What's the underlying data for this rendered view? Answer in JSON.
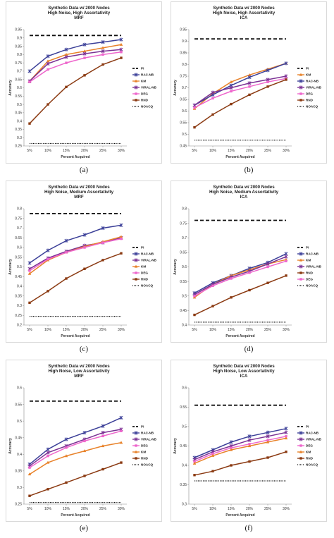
{
  "chart_data": [
    {
      "caption": "(a)",
      "type": "line",
      "title": [
        "Synthetic Data w/ 2000 Nodes",
        "High Noise, High Assortativity",
        "MRF"
      ],
      "xlabel": "Percent Acquired",
      "ylabel": "Accuracy",
      "categories": [
        "5%",
        "10%",
        "15%",
        "20%",
        "25%",
        "30%"
      ],
      "ylim": [
        0.25,
        0.95
      ],
      "ytick_step": 0.05,
      "ytick_labels": [
        "0.25",
        "0.3",
        "0.35",
        "0.4",
        "0.45",
        "0.5",
        "0.55",
        "0.6",
        "0.65",
        "0.7",
        "0.75",
        "0.8",
        "0.85",
        "0.9",
        "0.95"
      ],
      "grid": false,
      "legend_position": "right",
      "series": [
        {
          "name": "PI",
          "style": "dash",
          "color": "#111111",
          "values": [
            0.915,
            0.915,
            0.915,
            0.915,
            0.915,
            0.915
          ]
        },
        {
          "name": "RAC-NB",
          "style": "x",
          "color": "#3b3f98",
          "values": [
            0.7,
            0.79,
            0.83,
            0.86,
            0.875,
            0.89
          ]
        },
        {
          "name": "KM",
          "style": "tri",
          "color": "#e8822a",
          "values": [
            0.64,
            0.76,
            0.8,
            0.82,
            0.84,
            0.86
          ]
        },
        {
          "name": "VIRAL-NB",
          "style": "x",
          "color": "#7b3294",
          "values": [
            0.64,
            0.745,
            0.785,
            0.805,
            0.82,
            0.83
          ]
        },
        {
          "name": "DEG",
          "style": "sq",
          "color": "#ee66cc",
          "values": [
            0.635,
            0.71,
            0.75,
            0.78,
            0.8,
            0.815
          ]
        },
        {
          "name": "RND",
          "style": "sq",
          "color": "#8b3a12",
          "values": [
            0.385,
            0.5,
            0.605,
            0.675,
            0.74,
            0.78
          ]
        },
        {
          "name": "NOACQ",
          "style": "dot",
          "color": "#111111",
          "values": [
            0.265,
            0.265,
            0.265,
            0.265,
            0.265,
            0.265
          ]
        }
      ]
    },
    {
      "caption": "(b)",
      "type": "line",
      "title": [
        "Synthetic Data w/ 2000 Nodes",
        "High Noise, High Assortativity",
        "ICA"
      ],
      "xlabel": "Percent Acquired",
      "ylabel": "Accuracy",
      "categories": [
        "5%",
        "10%",
        "15%",
        "20%",
        "25%",
        "30%"
      ],
      "ylim": [
        0.45,
        0.95
      ],
      "ytick_step": 0.05,
      "ytick_labels": [
        "0.45",
        "0.5",
        "0.55",
        "0.6",
        "0.65",
        "0.7",
        "0.75",
        "0.8",
        "0.85",
        "0.9",
        "0.95"
      ],
      "grid": false,
      "legend_position": "right",
      "series": [
        {
          "name": "PI",
          "style": "dash",
          "color": "#111111",
          "values": [
            0.91,
            0.91,
            0.91,
            0.91,
            0.91,
            0.91
          ]
        },
        {
          "name": "KM",
          "style": "tri",
          "color": "#e8822a",
          "values": [
            0.61,
            0.675,
            0.725,
            0.755,
            0.78,
            0.805
          ]
        },
        {
          "name": "RAC-NB",
          "style": "x",
          "color": "#3b3f98",
          "values": [
            0.625,
            0.67,
            0.71,
            0.745,
            0.775,
            0.805
          ]
        },
        {
          "name": "VIRAL-NB",
          "style": "x",
          "color": "#7b3294",
          "values": [
            0.625,
            0.68,
            0.7,
            0.72,
            0.735,
            0.75
          ]
        },
        {
          "name": "DEG",
          "style": "sq",
          "color": "#ee66cc",
          "values": [
            0.615,
            0.655,
            0.685,
            0.705,
            0.725,
            0.74
          ]
        },
        {
          "name": "RND",
          "style": "sq",
          "color": "#8b3a12",
          "values": [
            0.53,
            0.585,
            0.63,
            0.67,
            0.705,
            0.735
          ]
        },
        {
          "name": "NOACQ",
          "style": "dot",
          "color": "#111111",
          "values": [
            0.475,
            0.475,
            0.475,
            0.475,
            0.475,
            0.475
          ]
        }
      ]
    },
    {
      "caption": "(c)",
      "type": "line",
      "title": [
        "Synthetic Data w/ 2000 Nodes",
        "High Noise, Medium Assortativity",
        "MRF"
      ],
      "xlabel": "Percent Acquired",
      "ylabel": "Accuracy",
      "categories": [
        "5%",
        "10%",
        "15%",
        "20%",
        "25%",
        "30%"
      ],
      "ylim": [
        0.2,
        0.8
      ],
      "ytick_step": 0.05,
      "ytick_labels": [
        "0.2",
        "0.25",
        "0.3",
        "0.35",
        "0.4",
        "0.45",
        "0.5",
        "0.55",
        "0.6",
        "0.65",
        "0.7",
        "0.75",
        "0.8"
      ],
      "grid": false,
      "legend_position": "right",
      "series": [
        {
          "name": "PI",
          "style": "dash",
          "color": "#111111",
          "values": [
            0.775,
            0.775,
            0.775,
            0.775,
            0.775,
            0.775
          ]
        },
        {
          "name": "RAC-NB",
          "style": "x",
          "color": "#3b3f98",
          "values": [
            0.52,
            0.585,
            0.635,
            0.665,
            0.7,
            0.715
          ]
        },
        {
          "name": "VIRAL-NB",
          "style": "x",
          "color": "#7b3294",
          "values": [
            0.49,
            0.545,
            0.58,
            0.61,
            0.625,
            0.65
          ]
        },
        {
          "name": "KM",
          "style": "tri",
          "color": "#e8822a",
          "values": [
            0.465,
            0.535,
            0.575,
            0.605,
            0.63,
            0.655
          ]
        },
        {
          "name": "DEG",
          "style": "sq",
          "color": "#ee66cc",
          "values": [
            0.48,
            0.54,
            0.575,
            0.6,
            0.625,
            0.645
          ]
        },
        {
          "name": "RND",
          "style": "sq",
          "color": "#8b3a12",
          "values": [
            0.315,
            0.375,
            0.44,
            0.49,
            0.535,
            0.57
          ]
        },
        {
          "name": "NOACQ",
          "style": "dot",
          "color": "#111111",
          "values": [
            0.245,
            0.245,
            0.245,
            0.245,
            0.245,
            0.245
          ]
        }
      ]
    },
    {
      "caption": "(d)",
      "type": "line",
      "title": [
        "Synthetic Data w/ 2000 Nodes",
        "High Noise, Medium Assortativity",
        "ICA"
      ],
      "xlabel": "Percent Acquired",
      "ylabel": "Accuracy",
      "categories": [
        "5%",
        "10%",
        "15%",
        "20%",
        "25%",
        "30%"
      ],
      "ylim": [
        0.4,
        0.8
      ],
      "ytick_step": 0.05,
      "ytick_labels": [
        "0.4",
        "0.45",
        "0.5",
        "0.55",
        "0.6",
        "0.65",
        "0.7",
        "0.75",
        "0.8"
      ],
      "grid": false,
      "legend_position": "right",
      "series": [
        {
          "name": "PI",
          "style": "dash",
          "color": "#111111",
          "values": [
            0.76,
            0.76,
            0.76,
            0.76,
            0.76,
            0.76
          ]
        },
        {
          "name": "RAC-NB",
          "style": "x",
          "color": "#3b3f98",
          "values": [
            0.51,
            0.545,
            0.57,
            0.595,
            0.615,
            0.645
          ]
        },
        {
          "name": "KM",
          "style": "tri",
          "color": "#e8822a",
          "values": [
            0.495,
            0.54,
            0.57,
            0.59,
            0.61,
            0.625
          ]
        },
        {
          "name": "VIRAL-NB",
          "style": "x",
          "color": "#7b3294",
          "values": [
            0.505,
            0.54,
            0.565,
            0.585,
            0.61,
            0.635
          ]
        },
        {
          "name": "RND",
          "style": "sq",
          "color": "#8b3a12",
          "values": [
            0.435,
            0.465,
            0.495,
            0.52,
            0.545,
            0.57
          ]
        },
        {
          "name": "DEG",
          "style": "sq",
          "color": "#ee66cc",
          "values": [
            0.5,
            0.535,
            0.56,
            0.58,
            0.6,
            0.62
          ]
        },
        {
          "name": "NOACQ",
          "style": "dot",
          "color": "#111111",
          "values": [
            0.41,
            0.41,
            0.41,
            0.41,
            0.41,
            0.41
          ]
        }
      ]
    },
    {
      "caption": "(e)",
      "type": "line",
      "title": [
        "Synthetic Data w/ 2000 Nodes",
        "High Noise, Low Assortativity",
        "MRF"
      ],
      "xlabel": "Percent Acquired",
      "ylabel": "Accuracy",
      "categories": [
        "5%",
        "10%",
        "15%",
        "20%",
        "25%",
        "30%"
      ],
      "ylim": [
        0.25,
        0.6
      ],
      "ytick_step": 0.05,
      "ytick_labels": [
        "0.25",
        "0.3",
        "0.35",
        "0.4",
        "0.45",
        "0.5",
        "0.55",
        "0.6"
      ],
      "grid": false,
      "legend_position": "right",
      "series": [
        {
          "name": "PI",
          "style": "dash",
          "color": "#111111",
          "values": [
            0.56,
            0.56,
            0.56,
            0.56,
            0.56,
            0.56
          ]
        },
        {
          "name": "RAC-NB",
          "style": "x",
          "color": "#3b3f98",
          "values": [
            0.37,
            0.415,
            0.445,
            0.465,
            0.485,
            0.51
          ]
        },
        {
          "name": "VIRAL-NB",
          "style": "x",
          "color": "#7b3294",
          "values": [
            0.365,
            0.405,
            0.425,
            0.445,
            0.465,
            0.475
          ]
        },
        {
          "name": "DEG",
          "style": "sq",
          "color": "#ee66cc",
          "values": [
            0.36,
            0.395,
            0.42,
            0.44,
            0.455,
            0.47
          ]
        },
        {
          "name": "KM",
          "style": "tri",
          "color": "#e8822a",
          "values": [
            0.34,
            0.375,
            0.395,
            0.41,
            0.425,
            0.435
          ]
        },
        {
          "name": "RND",
          "style": "sq",
          "color": "#8b3a12",
          "values": [
            0.275,
            0.295,
            0.315,
            0.335,
            0.355,
            0.375
          ]
        },
        {
          "name": "NOACQ",
          "style": "dot",
          "color": "#111111",
          "values": [
            0.255,
            0.255,
            0.255,
            0.255,
            0.255,
            0.255
          ]
        }
      ]
    },
    {
      "caption": "(f)",
      "type": "line",
      "title": [
        "Synthetic Data w/ 2000 Nodes",
        "High Noise, Low Assortativity",
        "ICA"
      ],
      "xlabel": "Percent Acquired",
      "ylabel": "Accuracy",
      "categories": [
        "5%",
        "10%",
        "15%",
        "20%",
        "25%",
        "30%"
      ],
      "ylim": [
        0.3,
        0.6
      ],
      "ytick_step": 0.05,
      "ytick_labels": [
        "0.3",
        "0.35",
        "0.4",
        "0.45",
        "0.5",
        "0.55",
        "0.6"
      ],
      "grid": false,
      "legend_position": "right",
      "series": [
        {
          "name": "PI",
          "style": "dash",
          "color": "#111111",
          "values": [
            0.555,
            0.555,
            0.555,
            0.555,
            0.555,
            0.555
          ]
        },
        {
          "name": "RAC-NB",
          "style": "x",
          "color": "#3b3f98",
          "values": [
            0.42,
            0.44,
            0.46,
            0.475,
            0.485,
            0.495
          ]
        },
        {
          "name": "VIRAL-NB",
          "style": "x",
          "color": "#7b3294",
          "values": [
            0.415,
            0.435,
            0.45,
            0.465,
            0.475,
            0.485
          ]
        },
        {
          "name": "DEG",
          "style": "sq",
          "color": "#ee66cc",
          "values": [
            0.41,
            0.43,
            0.445,
            0.455,
            0.465,
            0.475
          ]
        },
        {
          "name": "KM",
          "style": "tri",
          "color": "#e8822a",
          "values": [
            0.405,
            0.425,
            0.44,
            0.45,
            0.46,
            0.47
          ]
        },
        {
          "name": "RND",
          "style": "sq",
          "color": "#8b3a12",
          "values": [
            0.375,
            0.385,
            0.4,
            0.41,
            0.42,
            0.435
          ]
        },
        {
          "name": "NOACQ",
          "style": "dot",
          "color": "#111111",
          "values": [
            0.36,
            0.36,
            0.36,
            0.36,
            0.36,
            0.36
          ]
        }
      ]
    }
  ]
}
